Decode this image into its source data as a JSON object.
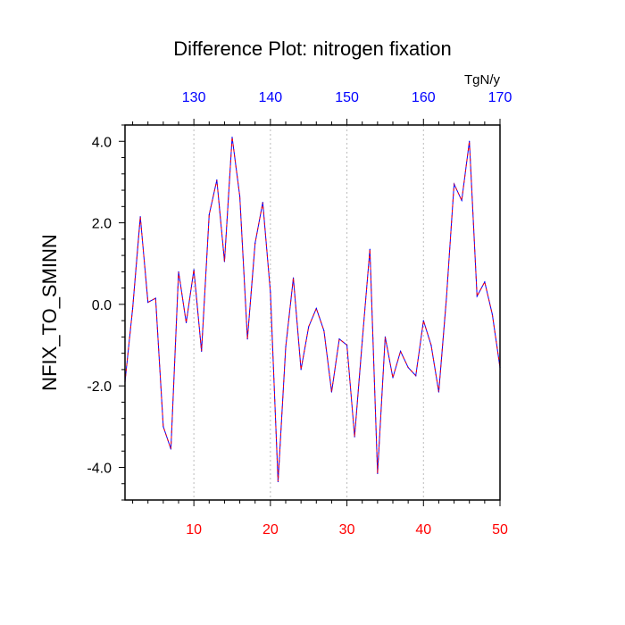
{
  "chart_data": {
    "type": "line",
    "title": "Difference Plot: nitrogen fixation",
    "ylabel": "NFIX_TO_SMINN",
    "top_axis_unit": "TgN/y",
    "xlim": [
      1,
      50
    ],
    "ylim": [
      -4.8,
      4.4
    ],
    "y_ticks": [
      4.0,
      2.0,
      0.0,
      -2.0,
      -4.0
    ],
    "y_tick_labels": [
      "4.0",
      "2.0",
      "0.0",
      "-2.0",
      "-4.0"
    ],
    "x_ticks_bottom": [
      10,
      20,
      30,
      40,
      50
    ],
    "x_tick_labels_bottom": [
      "10",
      "20",
      "30",
      "40",
      "50"
    ],
    "x_ticks_top": [
      130,
      140,
      150,
      160,
      170
    ],
    "x_tick_labels_top": [
      "130",
      "140",
      "150",
      "160",
      "170"
    ],
    "top_axis_offset": 120,
    "grid": "vertical dotted",
    "colors": {
      "line_primary": "#0000ff",
      "line_overlay": "#ff0000",
      "bottom_ticks": "#ff0000",
      "top_ticks": "#0000ff",
      "axis": "#000000",
      "grid": "#bbbbbb"
    },
    "series": [
      {
        "name": "difference",
        "x": [
          1,
          2,
          3,
          4,
          5,
          6,
          7,
          8,
          9,
          10,
          11,
          12,
          13,
          14,
          15,
          16,
          17,
          18,
          19,
          20,
          21,
          22,
          23,
          24,
          25,
          26,
          27,
          28,
          29,
          30,
          31,
          32,
          33,
          34,
          35,
          36,
          37,
          38,
          39,
          40,
          41,
          42,
          43,
          44,
          45,
          46,
          47,
          48,
          49,
          50
        ],
        "values": [
          -1.9,
          -0.1,
          2.15,
          0.05,
          0.15,
          -3.0,
          -3.55,
          0.8,
          -0.45,
          0.85,
          -1.15,
          2.2,
          3.05,
          1.05,
          4.1,
          2.65,
          -0.85,
          1.5,
          2.5,
          0.3,
          -4.35,
          -1.05,
          0.65,
          -1.6,
          -0.55,
          -0.1,
          -0.65,
          -2.15,
          -0.85,
          -1.0,
          -3.25,
          -0.9,
          1.35,
          -4.15,
          -0.8,
          -1.8,
          -1.15,
          -1.55,
          -1.75,
          -0.4,
          -1.0,
          -2.15,
          0.15,
          2.95,
          2.55,
          4.0,
          0.2,
          0.55,
          -0.25,
          -1.55
        ]
      }
    ]
  }
}
